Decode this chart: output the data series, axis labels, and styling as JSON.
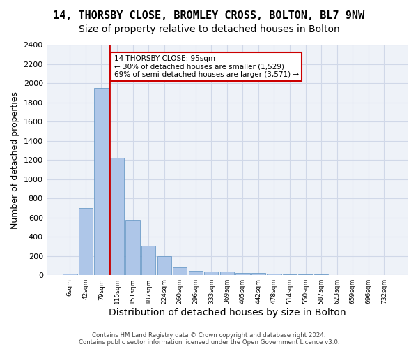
{
  "title": "14, THORSBY CLOSE, BROMLEY CROSS, BOLTON, BL7 9NW",
  "subtitle": "Size of property relative to detached houses in Bolton",
  "xlabel": "Distribution of detached houses by size in Bolton",
  "ylabel": "Number of detached properties",
  "bar_values": [
    15,
    700,
    1950,
    1225,
    575,
    305,
    200,
    80,
    45,
    38,
    35,
    25,
    20,
    15,
    10,
    8,
    6,
    5,
    4,
    3,
    2
  ],
  "bar_labels": [
    "6sqm",
    "42sqm",
    "79sqm",
    "115sqm",
    "151sqm",
    "187sqm",
    "224sqm",
    "260sqm",
    "296sqm",
    "333sqm",
    "369sqm",
    "405sqm",
    "442sqm",
    "478sqm",
    "514sqm",
    "550sqm",
    "587sqm",
    "623sqm",
    "659sqm",
    "696sqm",
    "732sqm"
  ],
  "bar_color": "#aec6e8",
  "bar_edge_color": "#5a8fc0",
  "vline_x": 2.5,
  "vline_color": "#cc0000",
  "annotation_text": "14 THORSBY CLOSE: 95sqm\n← 30% of detached houses are smaller (1,529)\n69% of semi-detached houses are larger (3,571) →",
  "annotation_box_color": "#cc0000",
  "ylim": [
    0,
    2400
  ],
  "yticks": [
    0,
    200,
    400,
    600,
    800,
    1000,
    1200,
    1400,
    1600,
    1800,
    2000,
    2200,
    2400
  ],
  "grid_color": "#d0d8e8",
  "bg_color": "#eef2f8",
  "footer": "Contains HM Land Registry data © Crown copyright and database right 2024.\nContains public sector information licensed under the Open Government Licence v3.0.",
  "title_fontsize": 11,
  "subtitle_fontsize": 10,
  "xlabel_fontsize": 10,
  "ylabel_fontsize": 9
}
